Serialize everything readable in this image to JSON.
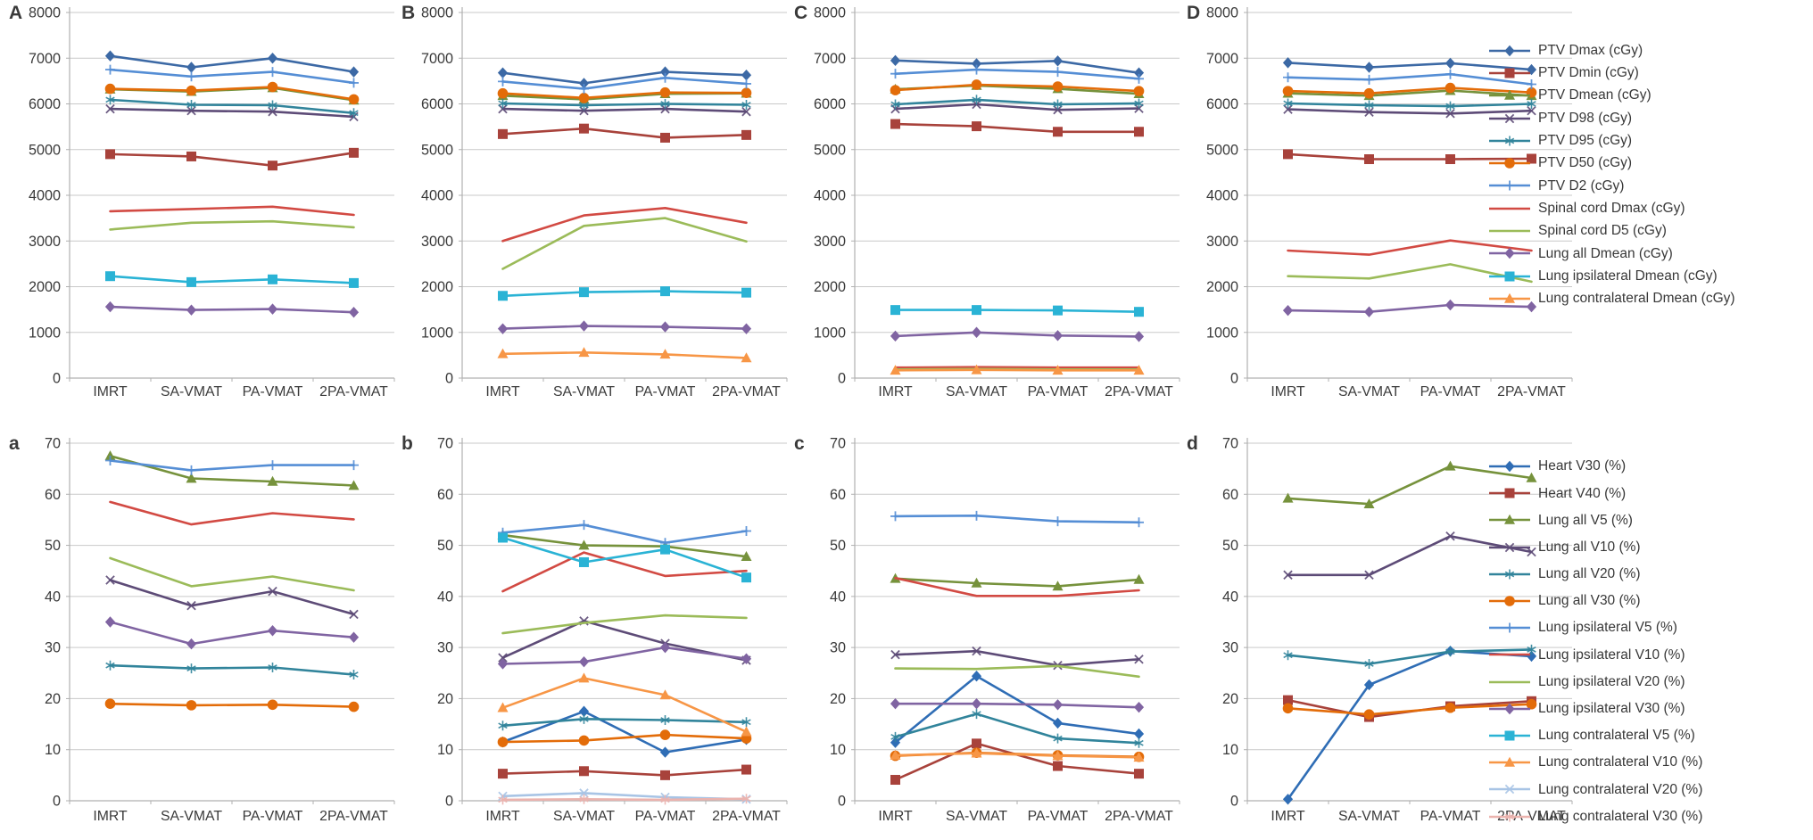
{
  "figure": {
    "background": "#FFFFFF",
    "text_color": "#3A3A3A",
    "grid_color": "#C9C9C9",
    "axis_color": "#B0B0B0"
  },
  "chart_data": {
    "type": "line",
    "categories": [
      "IMRT",
      "SA-VMAT",
      "PA-VMAT",
      "2PA-VMAT"
    ],
    "rows": [
      {
        "id": "dose",
        "ylim": [
          0,
          8000
        ],
        "ytick_step": 1000,
        "grid": true,
        "legend_position": "right",
        "series_defs": [
          {
            "name": "PTV Dmax (cGy)",
            "color": "#3C69A5",
            "marker": "diamond"
          },
          {
            "name": "PTV Dmin (cGy)",
            "color": "#A8423B",
            "marker": "square"
          },
          {
            "name": "PTV Dmean (cGy)",
            "color": "#76923C",
            "marker": "triangle"
          },
          {
            "name": "PTV D98 (cGy)",
            "color": "#5D4B77",
            "marker": "x"
          },
          {
            "name": "PTV D95 (cGy)",
            "color": "#31849B",
            "marker": "asterisk"
          },
          {
            "name": "PTV D50 (cGy)",
            "color": "#E36C09",
            "marker": "circle"
          },
          {
            "name": "PTV D2 (cGy)",
            "color": "#558ED5",
            "marker": "plus"
          },
          {
            "name": "Spinal cord Dmax (cGy)",
            "color": "#D24A43",
            "marker": "none"
          },
          {
            "name": "Spinal cord D5 (cGy)",
            "color": "#9BBB59",
            "marker": "none"
          },
          {
            "name": "Lung all Dmean (cGy)",
            "color": "#8064A2",
            "marker": "diamond"
          },
          {
            "name": "Lung ipsilateral Dmean (cGy)",
            "color": "#2AB3D5",
            "marker": "square"
          },
          {
            "name": "Lung contralateral Dmean (cGy)",
            "color": "#F79646",
            "marker": "triangle"
          }
        ],
        "panels": [
          {
            "label": "A",
            "values": [
              [
                7050,
                6800,
                7000,
                6700
              ],
              [
                4900,
                4850,
                4650,
                4930
              ],
              [
                6320,
                6270,
                6350,
                6080
              ],
              [
                5890,
                5850,
                5830,
                5720
              ],
              [
                6090,
                5980,
                5970,
                5800
              ],
              [
                6330,
                6290,
                6370,
                6100
              ],
              [
                6750,
                6600,
                6700,
                6460
              ],
              [
                3650,
                3700,
                3750,
                3570
              ],
              [
                3250,
                3400,
                3430,
                3300
              ],
              [
                1560,
                1490,
                1510,
                1440
              ],
              [
                2230,
                2100,
                2160,
                2080
              ],
              null
            ]
          },
          {
            "label": "B",
            "values": [
              [
                6680,
                6450,
                6700,
                6630
              ],
              [
                5340,
                5460,
                5260,
                5320
              ],
              [
                6180,
                6100,
                6220,
                6230
              ],
              [
                5890,
                5850,
                5890,
                5830
              ],
              [
                6010,
                5970,
                6000,
                5980
              ],
              [
                6230,
                6130,
                6250,
                6240
              ],
              [
                6490,
                6330,
                6570,
                6440
              ],
              [
                3000,
                3560,
                3720,
                3400
              ],
              [
                2390,
                3330,
                3500,
                2990
              ],
              [
                1080,
                1140,
                1120,
                1080
              ],
              [
                1800,
                1880,
                1900,
                1870
              ],
              [
                530,
                560,
                520,
                440
              ]
            ]
          },
          {
            "label": "C",
            "values": [
              [
                6950,
                6880,
                6940,
                6680
              ],
              [
                5560,
                5510,
                5390,
                5390
              ],
              [
                6320,
                6400,
                6330,
                6220
              ],
              [
                5890,
                5990,
                5870,
                5900
              ],
              [
                5990,
                6090,
                5990,
                6010
              ],
              [
                6300,
                6420,
                6380,
                6280
              ],
              [
                6660,
                6750,
                6700,
                6550
              ],
              [
                230,
                240,
                230,
                230
              ],
              [
                190,
                200,
                190,
                190
              ],
              [
                920,
                1000,
                930,
                910
              ],
              [
                1490,
                1490,
                1480,
                1450
              ],
              [
                170,
                180,
                170,
                170
              ]
            ]
          },
          {
            "label": "D",
            "values": [
              [
                6900,
                6800,
                6890,
                6750
              ],
              [
                4900,
                4790,
                4790,
                4800
              ],
              [
                6230,
                6180,
                6290,
                6180
              ],
              [
                5880,
                5820,
                5790,
                5850
              ],
              [
                6010,
                5970,
                5950,
                6000
              ],
              [
                6280,
                6230,
                6350,
                6250
              ],
              [
                6580,
                6530,
                6650,
                6430
              ],
              [
                2790,
                2700,
                3010,
                2790
              ],
              [
                2230,
                2180,
                2490,
                2110
              ],
              [
                1480,
                1450,
                1600,
                1560
              ],
              null,
              null
            ]
          }
        ]
      },
      {
        "id": "volume",
        "ylim": [
          0,
          70
        ],
        "ytick_step": 10,
        "grid": true,
        "legend_position": "right",
        "series_defs": [
          {
            "name": "Heart V30 (%)",
            "color": "#2F6DB5",
            "marker": "diamond"
          },
          {
            "name": "Heart V40 (%)",
            "color": "#A8423B",
            "marker": "square"
          },
          {
            "name": "Lung all V5 (%)",
            "color": "#76923C",
            "marker": "triangle"
          },
          {
            "name": "Lung all V10 (%)",
            "color": "#5D4B77",
            "marker": "x"
          },
          {
            "name": "Lung all V20 (%)",
            "color": "#31849B",
            "marker": "asterisk"
          },
          {
            "name": "Lung all V30 (%)",
            "color": "#E36C09",
            "marker": "circle"
          },
          {
            "name": "Lung ipsilateral V5 (%)",
            "color": "#558ED5",
            "marker": "plus"
          },
          {
            "name": "Lung ipsilateral V10 (%)",
            "color": "#D24A43",
            "marker": "none"
          },
          {
            "name": "Lung ipsilateral V20 (%)",
            "color": "#9BBB59",
            "marker": "none"
          },
          {
            "name": "Lung ipsilateral V30 (%)",
            "color": "#8064A2",
            "marker": "diamond"
          },
          {
            "name": "Lung contralateral V5 (%)",
            "color": "#2AB3D5",
            "marker": "square"
          },
          {
            "name": "Lung contralateral V10 (%)",
            "color": "#F79646",
            "marker": "triangle"
          },
          {
            "name": "Lung contralateral V20 (%)",
            "color": "#A8C4E5",
            "marker": "x"
          },
          {
            "name": "Lung contralateral V30 (%)",
            "color": "#EBB3AE",
            "marker": "asterisk"
          }
        ],
        "panels": [
          {
            "label": "a",
            "values": [
              null,
              null,
              [
                67.5,
                63.1,
                62.5,
                61.7
              ],
              [
                43.2,
                38.2,
                41.0,
                36.5
              ],
              [
                26.5,
                25.9,
                26.1,
                24.7
              ],
              [
                19.0,
                18.7,
                18.8,
                18.4
              ],
              [
                66.6,
                64.7,
                65.7,
                65.7
              ],
              [
                58.5,
                54.1,
                56.3,
                55.1
              ],
              [
                47.5,
                42.0,
                43.9,
                41.2
              ],
              [
                35.0,
                30.7,
                33.3,
                32.0
              ],
              null,
              null,
              null,
              null
            ]
          },
          {
            "label": "b",
            "values": [
              [
                11.5,
                17.5,
                9.5,
                12.0
              ],
              [
                5.3,
                5.8,
                5.0,
                6.1
              ],
              [
                52.0,
                50.0,
                49.8,
                47.8
              ],
              [
                28.0,
                35.2,
                30.8,
                27.5
              ],
              [
                14.7,
                16.0,
                15.8,
                15.4
              ],
              [
                11.5,
                11.8,
                12.9,
                12.2
              ],
              [
                52.5,
                54.0,
                50.5,
                52.8
              ],
              [
                41.0,
                48.6,
                44.0,
                45.0
              ],
              [
                32.8,
                34.8,
                36.3,
                35.8
              ],
              [
                26.8,
                27.2,
                30.0,
                27.8
              ],
              [
                51.5,
                46.7,
                49.2,
                43.7
              ],
              [
                18.2,
                24.0,
                20.7,
                13.5
              ],
              [
                0.9,
                1.5,
                0.7,
                0.3
              ],
              [
                0.2,
                0.3,
                0.2,
                0.4
              ]
            ]
          },
          {
            "label": "c",
            "values": [
              [
                11.4,
                24.4,
                15.2,
                13.1
              ],
              [
                4.1,
                11.2,
                6.8,
                5.3
              ],
              [
                43.5,
                42.6,
                42.0,
                43.3
              ],
              [
                28.6,
                29.3,
                26.5,
                27.7
              ],
              [
                12.5,
                17.0,
                12.2,
                11.3
              ],
              [
                8.8,
                9.4,
                8.9,
                8.6
              ],
              [
                55.7,
                55.8,
                54.7,
                54.5
              ],
              [
                43.6,
                40.1,
                40.1,
                41.2
              ],
              [
                25.9,
                25.8,
                26.4,
                24.3
              ],
              [
                19.0,
                19.0,
                18.8,
                18.3
              ],
              null,
              [
                8.9,
                9.3,
                8.8,
                8.5
              ],
              null,
              null
            ]
          },
          {
            "label": "d",
            "values": [
              [
                0.3,
                22.7,
                29.3,
                28.3
              ],
              [
                19.7,
                16.4,
                18.5,
                19.5
              ],
              [
                59.2,
                58.1,
                65.5,
                63.2
              ],
              [
                44.2,
                44.2,
                51.8,
                48.7
              ],
              [
                28.5,
                26.8,
                29.2,
                29.6
              ],
              [
                18.1,
                16.9,
                18.2,
                18.9
              ],
              null,
              null,
              null,
              null,
              null,
              null,
              null,
              null
            ]
          }
        ]
      }
    ]
  }
}
